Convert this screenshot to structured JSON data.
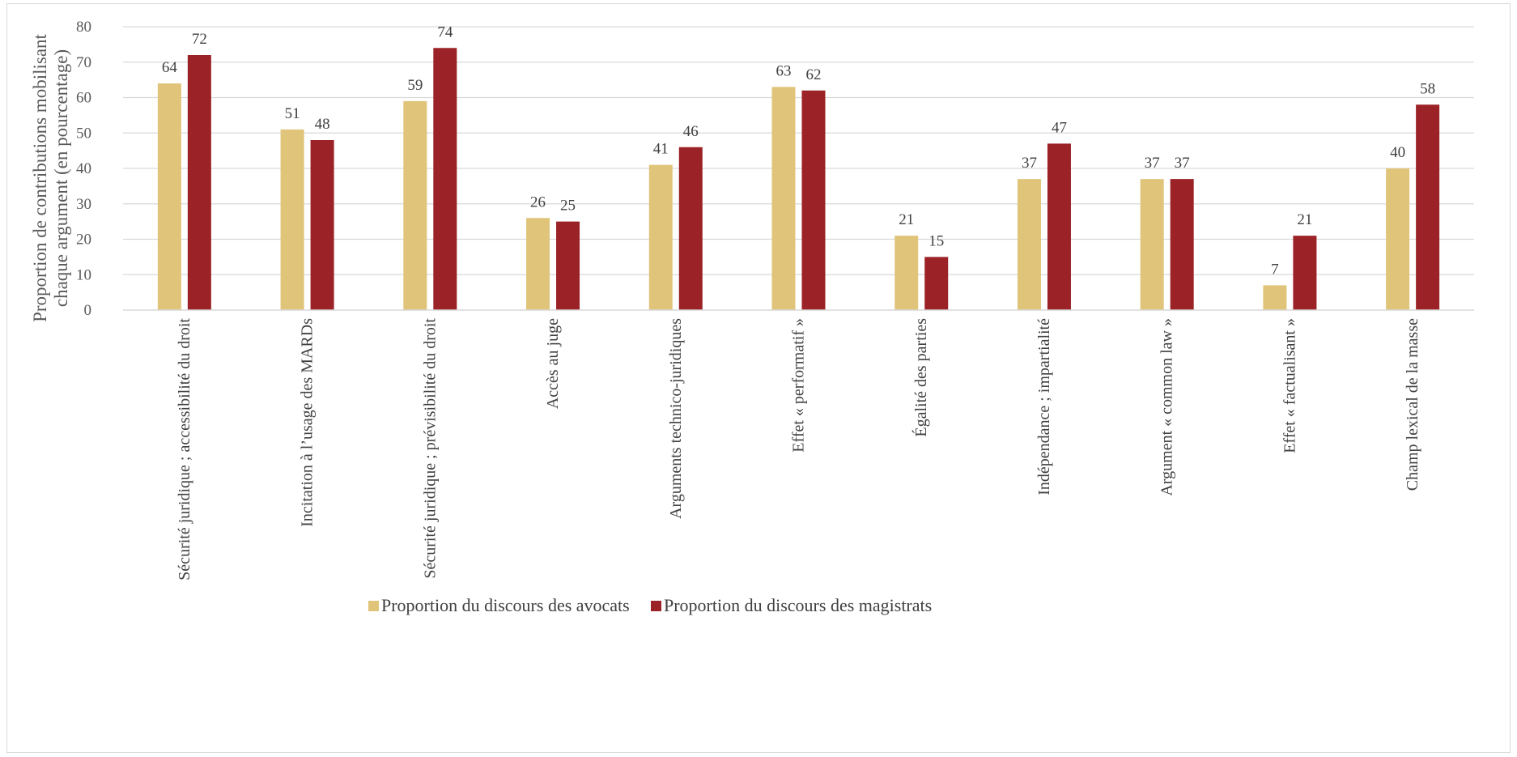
{
  "chart_data": {
    "type": "bar",
    "title": "",
    "xlabel": "",
    "ylabel": "Proportion de contributions mobilisant chaque argument (en pourcentage)",
    "ylabel_lines": [
      "Proportion de contributions mobilisant",
      "chaque argument (en pourcentage)"
    ],
    "ylim": [
      0,
      80
    ],
    "yticks": [
      0,
      10,
      20,
      30,
      40,
      50,
      60,
      70,
      80
    ],
    "grid": true,
    "legend_position": "bottom",
    "categories": [
      "Sécurité juridique ; accessibilité du droit",
      "Incitation à l’usage des MARDs",
      "Sécurité juridique ; prévisibilité du droit",
      "Accès au juge",
      "Arguments technico-juridiques",
      "Effet « performatif »",
      "Égalité des parties",
      "Indépendance ; impartialité",
      "Argument « common law »",
      "Effet « factualisant »",
      "Champ lexical de la masse"
    ],
    "series": [
      {
        "name": "Proportion du discours des avocats",
        "color": "#e0c47a",
        "values": [
          64,
          51,
          59,
          26,
          41,
          63,
          21,
          37,
          37,
          7,
          40
        ]
      },
      {
        "name": "Proportion du discours des magistrats",
        "color": "#9b2226",
        "values": [
          72,
          48,
          74,
          25,
          46,
          62,
          15,
          47,
          37,
          21,
          58
        ]
      }
    ]
  }
}
